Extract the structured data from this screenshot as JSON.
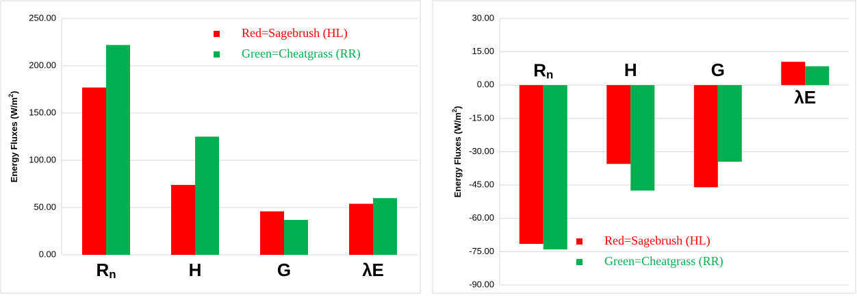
{
  "chart_data": [
    {
      "type": "bar",
      "categories": [
        "Rn",
        "H",
        "G",
        "λE"
      ],
      "series": [
        {
          "name": "Red=Sagebrush (HL)",
          "color": "#ff0000",
          "values": [
            177,
            74,
            46,
            54
          ]
        },
        {
          "name": "Green=Cheatgrass (RR)",
          "color": "#00b050",
          "values": [
            222,
            125,
            37,
            60
          ]
        }
      ],
      "y_label": "Energy Fluxes (W/m2)",
      "ylim": [
        0,
        250
      ],
      "yticks": [
        {
          "value": 0,
          "label": "0.00"
        },
        {
          "value": 50,
          "label": "50.00"
        },
        {
          "value": 100,
          "label": "100.00"
        },
        {
          "value": 150,
          "label": "150.00"
        },
        {
          "value": 200,
          "label": "200.00"
        },
        {
          "value": 250,
          "label": "250.00"
        }
      ],
      "grid": true,
      "legend": "upper right"
    },
    {
      "type": "bar",
      "categories": [
        "Rn",
        "H",
        "G",
        "λE"
      ],
      "series": [
        {
          "name": "Red=Sagebrush (HL)",
          "color": "#ff0000",
          "values": [
            -71.5,
            -35.5,
            -46,
            10.5
          ]
        },
        {
          "name": "Green=Cheatgrass (RR)",
          "color": "#00b050",
          "values": [
            -74,
            -47.5,
            -34.5,
            8.5
          ]
        }
      ],
      "y_label": "Energy Fluxes (W/m2)",
      "ylim": [
        -90,
        30
      ],
      "yticks": [
        {
          "value": -90,
          "label": "-90.00"
        },
        {
          "value": -75,
          "label": "-75.00"
        },
        {
          "value": -60,
          "label": "-60.00"
        },
        {
          "value": -45,
          "label": "-45.00"
        },
        {
          "value": -30,
          "label": "-30.00"
        },
        {
          "value": -15,
          "label": "-15.00"
        },
        {
          "value": 0,
          "label": "0.00"
        },
        {
          "value": 15,
          "label": "15.00"
        },
        {
          "value": 30,
          "label": "30.00"
        }
      ],
      "grid": true,
      "legend": "lower center"
    }
  ]
}
